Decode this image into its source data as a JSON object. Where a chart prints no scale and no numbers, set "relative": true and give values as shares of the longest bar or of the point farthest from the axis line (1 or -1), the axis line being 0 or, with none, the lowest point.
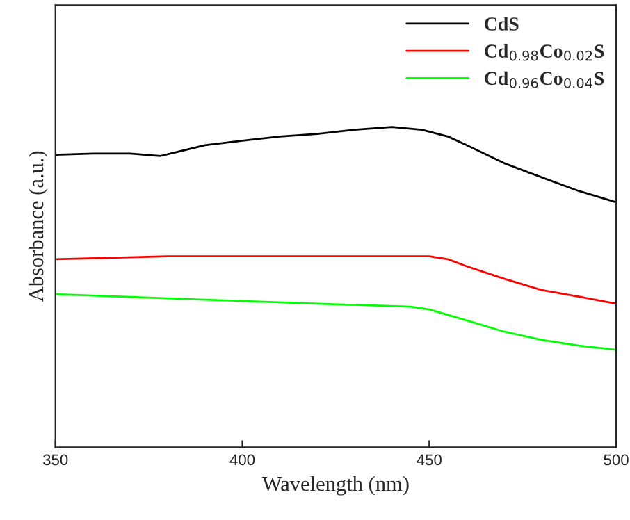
{
  "chart_data": {
    "type": "line",
    "relative": true,
    "xlabel": "Wavelength (nm)",
    "ylabel": "Absorbance (a.u.)",
    "xlim": [
      350,
      500
    ],
    "xticks": [
      350,
      400,
      450,
      500
    ],
    "tick_labels": "x",
    "legend": "top right",
    "grid": false,
    "series": [
      {
        "name": "CdS",
        "color": "#000000",
        "x": [
          350,
          360,
          370,
          378,
          390,
          400,
          410,
          420,
          430,
          440,
          448,
          455,
          460,
          470,
          480,
          490,
          500
        ],
        "values": [
          0.913,
          0.917,
          0.917,
          0.909,
          0.943,
          0.957,
          0.97,
          0.978,
          0.991,
          1.0,
          0.991,
          0.97,
          0.943,
          0.887,
          0.843,
          0.8,
          0.765
        ]
      },
      {
        "name": "Cd$_{0.98}$Co$_{0.02}$S",
        "color": "#ff0000",
        "x": [
          350,
          380,
          420,
          450,
          455,
          460,
          470,
          480,
          490,
          500
        ],
        "values": [
          0.587,
          0.596,
          0.596,
          0.596,
          0.587,
          0.565,
          0.526,
          0.491,
          0.47,
          0.448
        ]
      },
      {
        "name": "Cd$_{0.96}$Co$_{0.04}$S",
        "color": "#00ff00",
        "x": [
          350,
          380,
          420,
          445,
          450,
          460,
          470,
          480,
          490,
          500
        ],
        "values": [
          0.478,
          0.465,
          0.448,
          0.439,
          0.43,
          0.396,
          0.361,
          0.335,
          0.317,
          0.304
        ]
      }
    ]
  }
}
